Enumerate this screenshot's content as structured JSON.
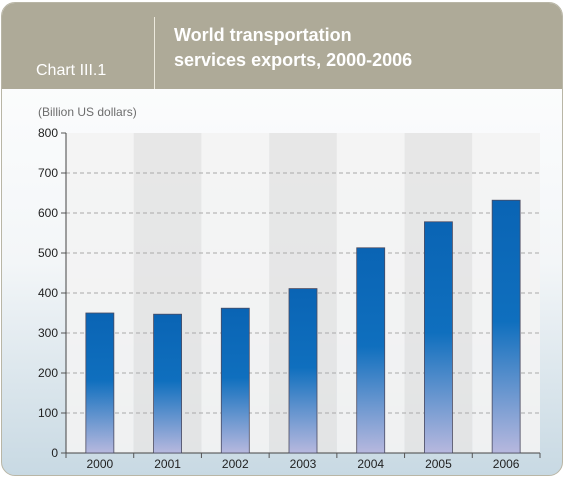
{
  "header": {
    "chart_label": "Chart III.1",
    "title_line1": "World transportation",
    "title_line2": "services exports, 2000-2006"
  },
  "colors": {
    "header": "#aeaa98",
    "bar_top": "#0a64b4",
    "bar_bottom": "#b7b8de",
    "band_alt": "#e4e4e4"
  },
  "chart_data": {
    "type": "bar",
    "title": "World transportation services exports, 2000-2006",
    "ylabel": "(Billion US dollars)",
    "xlabel": "",
    "categories": [
      "2000",
      "2001",
      "2002",
      "2003",
      "2004",
      "2005",
      "2006"
    ],
    "values": [
      350,
      347,
      362,
      411,
      513,
      578,
      632
    ],
    "ylim": [
      0,
      800
    ],
    "yticks": [
      0,
      100,
      200,
      300,
      400,
      500,
      600,
      700,
      800
    ],
    "grid": true,
    "legend": "none"
  }
}
